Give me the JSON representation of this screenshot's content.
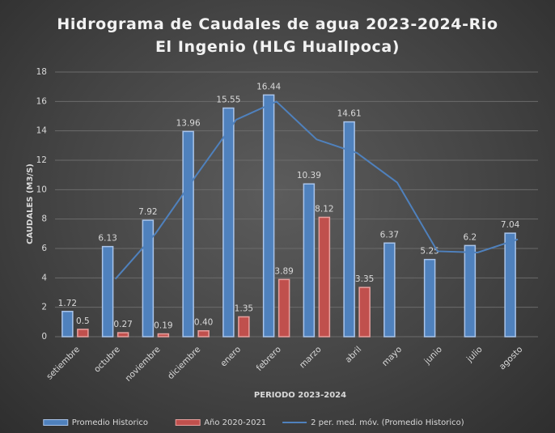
{
  "chart_data": {
    "type": "bar",
    "title": "Hidrograma de Caudales de agua 2023-2024-Rio El Ingenio (HLG Huallpoca)",
    "x_label": "PERIODO 2023-2024",
    "y_label": "CAUDALES (M3/S)",
    "categories": [
      "setiembre",
      "octubre",
      "noviembre",
      "diciembre",
      "enero",
      "febrero",
      "marzo",
      "abril",
      "mayo",
      "junio",
      "julio",
      "agosto"
    ],
    "series": [
      {
        "name": "Promedio Historico",
        "color": "#4f81bd",
        "values": [
          1.72,
          6.13,
          7.92,
          13.96,
          15.55,
          16.44,
          10.39,
          14.61,
          6.37,
          5.25,
          6.2,
          7.04
        ]
      },
      {
        "name": "Año 2020-2021",
        "color": "#c0504d",
        "values": [
          0.5,
          0.27,
          0.19,
          0.4,
          1.35,
          3.89,
          8.12,
          3.35,
          null,
          null,
          null,
          null
        ],
        "value_labels": [
          "0.5",
          "0.27",
          "0.19",
          "0.40",
          "1.35",
          "3.89",
          "8.12",
          "3.35",
          null,
          null,
          null,
          null
        ]
      },
      {
        "name": "2 per. med. móv. (Promedio Historico)",
        "color": "#4f81bd",
        "type": "line",
        "values": [
          null,
          3.925,
          7.025,
          10.94,
          14.755,
          15.995,
          13.415,
          12.5,
          10.49,
          5.81,
          5.725,
          6.62
        ]
      }
    ],
    "ylim": [
      0,
      18
    ],
    "yticks": [
      0,
      2,
      4,
      6,
      8,
      10,
      12,
      14,
      16,
      18
    ],
    "grid": true,
    "legend": "bottom"
  }
}
